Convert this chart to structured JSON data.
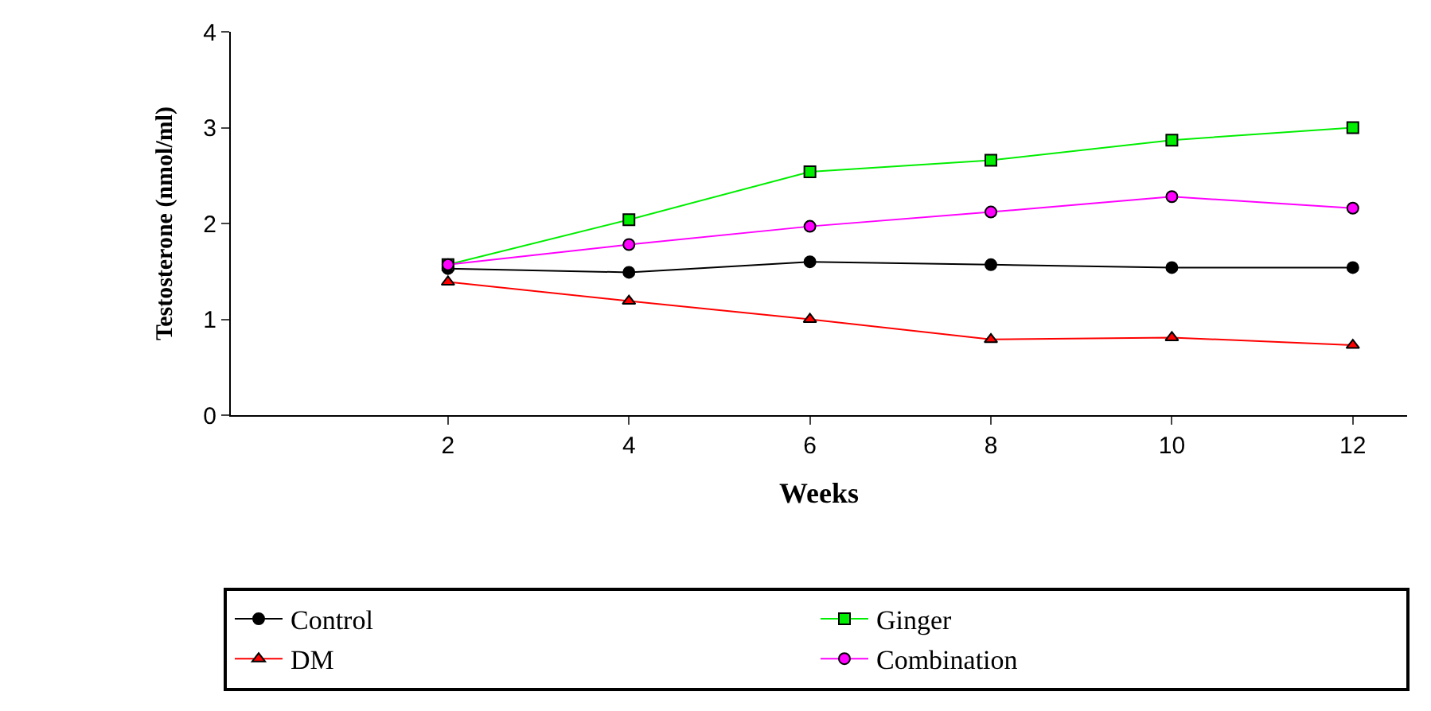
{
  "chart_data": {
    "type": "line",
    "xlabel": "Weeks",
    "ylabel": "Testosterone (nmol/ml)",
    "x": [
      2,
      4,
      6,
      8,
      10,
      12
    ],
    "xlim": [
      -0.4,
      12.6
    ],
    "xticks": [
      2,
      4,
      6,
      8,
      10,
      12
    ],
    "ylim": [
      0,
      4
    ],
    "yticks": [
      0,
      1,
      2,
      3,
      4
    ],
    "legend": "bottom",
    "series": [
      {
        "name": "Control",
        "color": "#000000",
        "marker": "circle",
        "values": [
          1.53,
          1.49,
          1.6,
          1.57,
          1.54,
          1.54
        ]
      },
      {
        "name": "Ginger",
        "color": "#00ee00",
        "marker": "square",
        "values": [
          1.57,
          2.04,
          2.54,
          2.66,
          2.87,
          3.0
        ]
      },
      {
        "name": "DM",
        "color": "#ff0000",
        "marker": "triangle",
        "values": [
          1.39,
          1.19,
          1.0,
          0.79,
          0.81,
          0.73
        ]
      },
      {
        "name": "Combination",
        "color": "#ff00ff",
        "marker": "circle",
        "values": [
          1.57,
          1.78,
          1.97,
          2.12,
          2.28,
          2.16
        ]
      }
    ]
  }
}
